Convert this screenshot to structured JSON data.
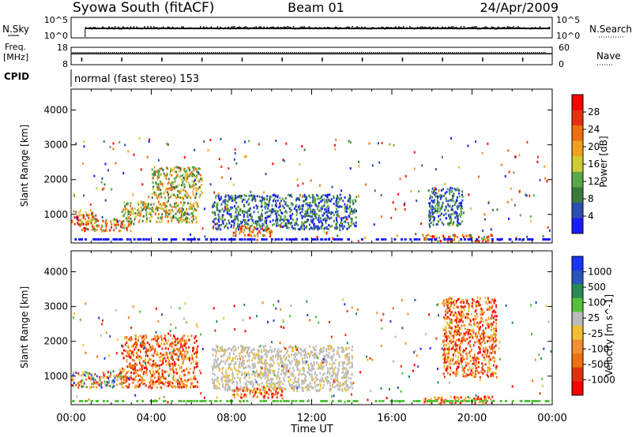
{
  "header": {
    "station": "Syowa South (fitACF)",
    "beam": "Beam 01",
    "date": "24/Apr/2009"
  },
  "noise_panel": {
    "left_label": "N.Sky",
    "right_label": "N.Search",
    "left_ticks": [
      "10^5",
      "10^0"
    ],
    "right_ticks": [
      "10^5",
      "10^0"
    ]
  },
  "freq_panel": {
    "left_label_line1": "Freq.",
    "left_label_line2": "[MHz]",
    "right_label": "Nave",
    "left_ticks": [
      "18",
      "8"
    ],
    "right_ticks": [
      "60",
      "0"
    ]
  },
  "cpid": {
    "label": "CPID",
    "text": "normal (fast stereo) 153"
  },
  "x_axis": {
    "label": "Time UT",
    "ticks": [
      "00:00",
      "04:00",
      "08:00",
      "12:00",
      "16:00",
      "20:00",
      "00:00"
    ],
    "range_hours": [
      0,
      24
    ]
  },
  "colors": {
    "power": [
      "#1a1aff",
      "#2a4fb0",
      "#3c7a3c",
      "#5aa84a",
      "#cccc33",
      "#f0a020",
      "#f07010",
      "#e83010",
      "#ff0000"
    ],
    "velocity": [
      "#1a33ff",
      "#2a55b8",
      "#2a8a55",
      "#55c03a",
      "#bbbbbb",
      "#f0c030",
      "#f09030",
      "#f07010",
      "#e03010",
      "#ff0000"
    ]
  },
  "chart_data": [
    {
      "type": "heatmap",
      "title": "",
      "xlabel": "Time UT",
      "ylabel": "Slant Range [km]",
      "xlim": [
        0,
        24
      ],
      "ylim": [
        180,
        4600
      ],
      "yticks": [
        "1000",
        "2000",
        "3000",
        "4000"
      ],
      "colorbar": {
        "label": "Power [dB]",
        "ticks": [
          "28",
          "24",
          "20",
          "16",
          "12",
          "8",
          "4"
        ],
        "range": [
          0,
          30
        ]
      },
      "regions": [
        {
          "t0": 0.0,
          "t1": 1.2,
          "r0": 700,
          "r1": 1150,
          "level": "high"
        },
        {
          "t0": 0.5,
          "t1": 3.0,
          "r0": 550,
          "r1": 900,
          "level": "high"
        },
        {
          "t0": 2.5,
          "t1": 6.3,
          "r0": 800,
          "r1": 1400,
          "level": "mid"
        },
        {
          "t0": 4.0,
          "t1": 6.5,
          "r0": 1500,
          "r1": 2400,
          "level": "mid"
        },
        {
          "t0": 7.0,
          "t1": 14.2,
          "r0": 600,
          "r1": 1600,
          "level": "low"
        },
        {
          "t0": 8.0,
          "t1": 10.0,
          "r0": 400,
          "r1": 700,
          "level": "high"
        },
        {
          "t0": 17.5,
          "t1": 21.0,
          "r0": 250,
          "r1": 450,
          "level": "high"
        },
        {
          "t0": 17.8,
          "t1": 19.5,
          "r0": 700,
          "r1": 1800,
          "level": "low"
        }
      ]
    },
    {
      "type": "heatmap",
      "title": "",
      "xlabel": "Time UT",
      "ylabel": "Slant Range [km]",
      "xlim": [
        0,
        24
      ],
      "ylim": [
        180,
        4600
      ],
      "yticks": [
        "1000",
        "2000",
        "3000",
        "4000"
      ],
      "colorbar": {
        "label": "Velocity [m s^-1]",
        "ticks": [
          "1000",
          "500",
          "100",
          "25",
          "-25",
          "-100",
          "-500",
          "-1000"
        ],
        "range": [
          -1000,
          1000
        ]
      },
      "regions": [
        {
          "t0": 0.0,
          "t1": 2.5,
          "r0": 700,
          "r1": 1150,
          "level": "mixed"
        },
        {
          "t0": 2.5,
          "t1": 6.3,
          "r0": 700,
          "r1": 2200,
          "level": "negative"
        },
        {
          "t0": 7.0,
          "t1": 14.0,
          "r0": 600,
          "r1": 1900,
          "level": "zero"
        },
        {
          "t0": 8.0,
          "t1": 10.5,
          "r0": 400,
          "r1": 700,
          "level": "negative"
        },
        {
          "t0": 17.5,
          "t1": 21.0,
          "r0": 250,
          "r1": 450,
          "level": "negative"
        },
        {
          "t0": 18.5,
          "t1": 21.2,
          "r0": 1000,
          "r1": 3300,
          "level": "negative"
        }
      ]
    }
  ]
}
